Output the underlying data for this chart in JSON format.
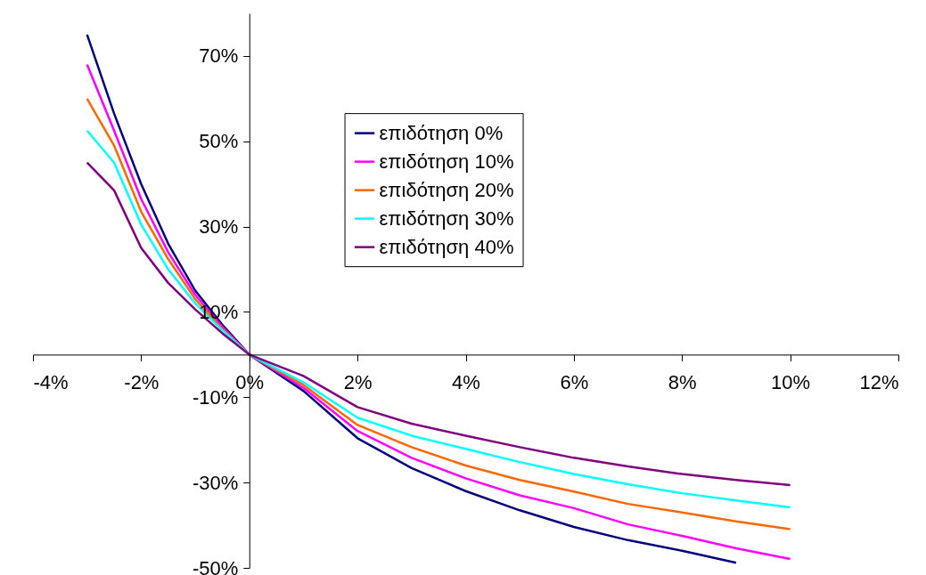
{
  "chart_data": {
    "type": "line",
    "x": [
      -3,
      -2.5,
      -2,
      -1.5,
      -1,
      -0.5,
      0,
      1,
      2,
      3,
      4,
      5,
      6,
      7,
      8,
      9,
      10
    ],
    "series": [
      {
        "name": "επιδότηση 0%",
        "color": "#000080",
        "values": [
          75,
          56.5,
          40,
          26,
          15,
          7,
          0,
          -8.5,
          -19.6,
          -26.6,
          -32,
          -36.5,
          -40.4,
          -43.5,
          -46,
          -48.8,
          null
        ]
      },
      {
        "name": "επιδότηση 10%",
        "color": "#ff00ff",
        "values": [
          68,
          52.5,
          36.5,
          24,
          14,
          6.5,
          0,
          -7.8,
          -17.9,
          -24.2,
          -29,
          -33,
          -36,
          -39.8,
          -42.5,
          -45.4,
          -47.9
        ]
      },
      {
        "name": "επιδότηση 20%",
        "color": "#ff6600",
        "values": [
          60,
          49,
          33.5,
          22.4,
          13,
          6,
          0,
          -7.1,
          -16.5,
          -21.7,
          -26,
          -29.4,
          -32.1,
          -35,
          -37,
          -39.1,
          -40.9
        ]
      },
      {
        "name": "επιδότηση 30%",
        "color": "#00ffff",
        "values": [
          52.5,
          45,
          30.5,
          20,
          12,
          5.7,
          0,
          -6.5,
          -14.8,
          -19,
          -22.1,
          -25.2,
          -28,
          -30.4,
          -32.5,
          -34.2,
          -35.8
        ]
      },
      {
        "name": "επιδότηση 40%",
        "color": "#800080",
        "values": [
          45,
          38.5,
          25,
          16.8,
          10.6,
          5,
          0,
          -5,
          -12.3,
          -16.2,
          -19,
          -21.7,
          -24.2,
          -26.2,
          -28,
          -29.4,
          -30.6
        ]
      }
    ],
    "xlim": [
      -4,
      12
    ],
    "ylim": [
      -50,
      80
    ],
    "xticks": [
      {
        "value": -4,
        "label": "-4%"
      },
      {
        "value": -2,
        "label": "-2%"
      },
      {
        "value": 0,
        "label": "0%"
      },
      {
        "value": 2,
        "label": "2%"
      },
      {
        "value": 4,
        "label": "4%"
      },
      {
        "value": 6,
        "label": "6%"
      },
      {
        "value": 8,
        "label": "8%"
      },
      {
        "value": 10,
        "label": "10%"
      },
      {
        "value": 12,
        "label": "12%"
      }
    ],
    "yticks": [
      {
        "value": -50,
        "label": "-50%"
      },
      {
        "value": -30,
        "label": "-30%"
      },
      {
        "value": -10,
        "label": "-10%"
      },
      {
        "value": 10,
        "label": "10%"
      },
      {
        "value": 30,
        "label": "30%"
      },
      {
        "value": 50,
        "label": "50%"
      },
      {
        "value": 70,
        "label": "70%"
      }
    ],
    "grid": false,
    "legend": "top",
    "marker": "none",
    "line_style": "solid"
  }
}
